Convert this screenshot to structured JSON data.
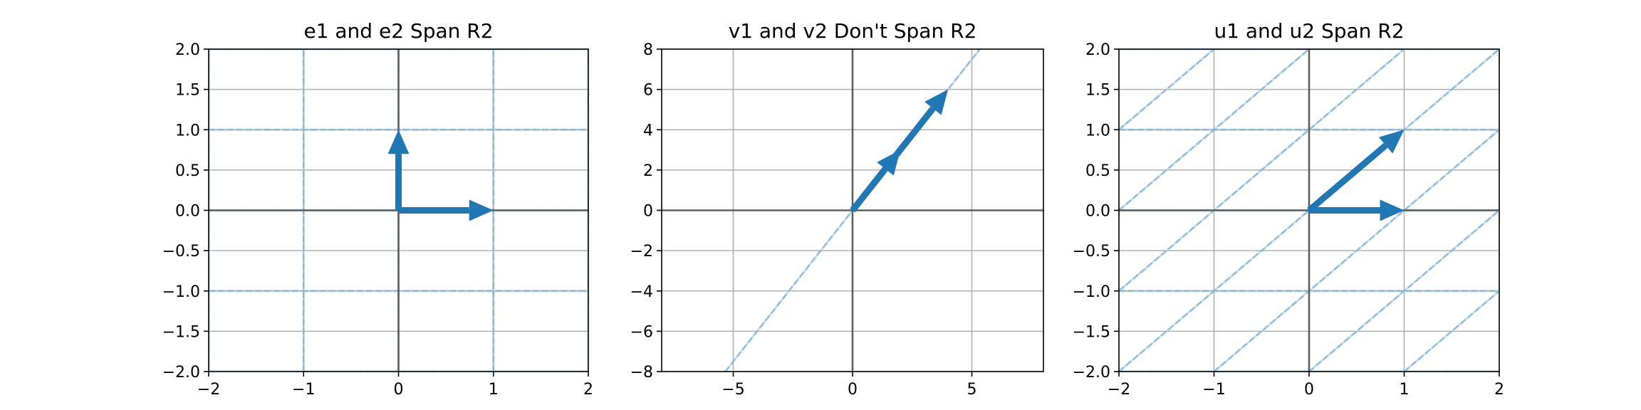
{
  "chart_data": [
    {
      "type": "line",
      "title": "e1 and e2 Span R2",
      "xlim": [
        -2,
        2
      ],
      "ylim": [
        -2,
        2
      ],
      "xticks": [
        -2,
        -1,
        0,
        1,
        2
      ],
      "xtick_labels": [
        "−2",
        "−1",
        "0",
        "1",
        "2"
      ],
      "yticks": [
        -2.0,
        -1.5,
        -1.0,
        -0.5,
        0.0,
        0.5,
        1.0,
        1.5,
        2.0
      ],
      "ytick_labels": [
        "−2.0",
        "−1.5",
        "−1.0",
        "−0.5",
        "0.0",
        "0.5",
        "1.0",
        "1.5",
        "2.0"
      ],
      "grid": true,
      "basis_vectors": [
        [
          1,
          0
        ],
        [
          0,
          1
        ]
      ],
      "span_lines": [
        {
          "direction": [
            1,
            0
          ],
          "offsets": [
            -2,
            -1,
            0,
            1,
            2
          ],
          "along": [
            0,
            1
          ]
        },
        {
          "direction": [
            0,
            1
          ],
          "offsets": [
            -2,
            -1,
            0,
            1,
            2
          ],
          "along": [
            1,
            0
          ]
        }
      ],
      "vectors": [
        {
          "from": [
            0,
            0
          ],
          "to": [
            1,
            0
          ]
        },
        {
          "from": [
            0,
            0
          ],
          "to": [
            0,
            1
          ]
        }
      ]
    },
    {
      "type": "line",
      "title": "v1 and v2 Don't Span R2",
      "xlim": [
        -8,
        8
      ],
      "ylim": [
        -8,
        8
      ],
      "xticks": [
        -5,
        0,
        5
      ],
      "xtick_labels": [
        "−5",
        "0",
        "5"
      ],
      "yticks": [
        -8,
        -6,
        -4,
        -2,
        0,
        2,
        4,
        6,
        8
      ],
      "ytick_labels": [
        "−8",
        "−6",
        "−4",
        "−2",
        "0",
        "2",
        "4",
        "6",
        "8"
      ],
      "grid": true,
      "span_lines": [
        {
          "direction": [
            1,
            1.5
          ],
          "offsets": [
            0
          ],
          "along": [
            0,
            0
          ]
        }
      ],
      "vectors": [
        {
          "from": [
            0,
            0
          ],
          "to": [
            4,
            6
          ]
        },
        {
          "from": [
            0,
            0
          ],
          "to": [
            2,
            3
          ]
        }
      ]
    },
    {
      "type": "line",
      "title": "u1 and u2 Span R2",
      "xlim": [
        -2,
        2
      ],
      "ylim": [
        -2,
        2
      ],
      "xticks": [
        -2,
        -1,
        0,
        1,
        2
      ],
      "xtick_labels": [
        "−2",
        "−1",
        "0",
        "1",
        "2"
      ],
      "yticks": [
        -2.0,
        -1.5,
        -1.0,
        -0.5,
        0.0,
        0.5,
        1.0,
        1.5,
        2.0
      ],
      "ytick_labels": [
        "−2.0",
        "−1.5",
        "−1.0",
        "−0.5",
        "0.0",
        "0.5",
        "1.0",
        "1.5",
        "2.0"
      ],
      "grid": true,
      "span_lines": [
        {
          "direction": [
            1,
            0
          ],
          "offsets": [
            -2,
            -1,
            0,
            1,
            2
          ],
          "along": [
            0,
            1
          ]
        },
        {
          "direction": [
            1,
            1
          ],
          "offsets": [
            -4,
            -3,
            -2,
            -1,
            0,
            1,
            2,
            3,
            4
          ],
          "along": [
            1,
            0
          ]
        }
      ],
      "vectors": [
        {
          "from": [
            0,
            0
          ],
          "to": [
            1,
            0
          ]
        },
        {
          "from": [
            0,
            0
          ],
          "to": [
            1,
            1
          ]
        }
      ]
    }
  ]
}
